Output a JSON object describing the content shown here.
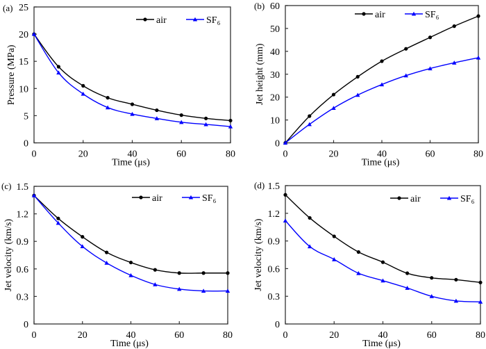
{
  "chart_data": [
    {
      "type": "line",
      "panel_label": "(a)",
      "title": "",
      "xlabel": "Time (μs)",
      "ylabel": "Pressure (MPa)",
      "xlim": [
        0,
        80
      ],
      "ylim": [
        0,
        25
      ],
      "xticks": [
        0,
        20,
        40,
        60,
        80
      ],
      "yticks": [
        0,
        5,
        10,
        15,
        20,
        25
      ],
      "grid": false,
      "legend_position": "top-right",
      "x": [
        0,
        10,
        20,
        30,
        40,
        50,
        60,
        70,
        80
      ],
      "series": [
        {
          "name": "air",
          "color": "#000000",
          "marker": "circle",
          "values": [
            20.0,
            14.0,
            10.5,
            8.3,
            7.1,
            6.0,
            5.1,
            4.5,
            4.1
          ]
        },
        {
          "name": "SF₆",
          "color": "#0000ff",
          "marker": "triangle",
          "values": [
            20.0,
            12.9,
            9.0,
            6.5,
            5.3,
            4.5,
            3.8,
            3.4,
            3.0
          ]
        }
      ]
    },
    {
      "type": "line",
      "panel_label": "(b)",
      "title": "",
      "xlabel": "Time (μs)",
      "ylabel": "Jet height (mm)",
      "xlim": [
        0,
        80
      ],
      "ylim": [
        0,
        60
      ],
      "xticks": [
        0,
        20,
        40,
        60,
        80
      ],
      "yticks": [
        0,
        10,
        20,
        30,
        40,
        50,
        60
      ],
      "grid": false,
      "legend_position": "top-center",
      "x": [
        0,
        10,
        20,
        30,
        40,
        50,
        60,
        70,
        80
      ],
      "series": [
        {
          "name": "air",
          "color": "#000000",
          "marker": "circle",
          "values": [
            0,
            11.7,
            21.1,
            28.9,
            35.7,
            41.1,
            46.1,
            51.0,
            55.4
          ]
        },
        {
          "name": "SF₆",
          "color": "#0000ff",
          "marker": "triangle",
          "values": [
            0,
            8.1,
            15.2,
            20.9,
            25.5,
            29.4,
            32.5,
            35.0,
            37.2
          ]
        }
      ]
    },
    {
      "type": "line",
      "panel_label": "(c)",
      "title": "",
      "xlabel": "Time (μs)",
      "ylabel": "Jet velocity (km/s)",
      "xlim": [
        0,
        80
      ],
      "ylim": [
        0,
        1.5
      ],
      "xticks": [
        0,
        20,
        40,
        60,
        80
      ],
      "yticks": [
        0,
        0.3,
        0.6,
        0.9,
        1.2,
        1.5
      ],
      "ytick_labels": [
        "0",
        "0.3",
        "0.6",
        "0.9",
        "1.2",
        "1.5"
      ],
      "grid": false,
      "legend_position": "top-right",
      "x": [
        0,
        10,
        20,
        30,
        40,
        50,
        60,
        70,
        80
      ],
      "series": [
        {
          "name": "air",
          "color": "#000000",
          "marker": "circle",
          "values": [
            1.4,
            1.15,
            0.95,
            0.78,
            0.67,
            0.59,
            0.555,
            0.555,
            0.555
          ]
        },
        {
          "name": "SF₆",
          "color": "#0000ff",
          "marker": "triangle",
          "values": [
            1.4,
            1.1,
            0.845,
            0.665,
            0.53,
            0.43,
            0.38,
            0.36,
            0.36
          ]
        }
      ]
    },
    {
      "type": "line",
      "panel_label": "(d)",
      "title": "",
      "xlabel": "Time (μs)",
      "ylabel": "Jet velocity (km/s)",
      "xlim": [
        0,
        80
      ],
      "ylim": [
        0,
        1.5
      ],
      "xticks": [
        0,
        20,
        40,
        60,
        80
      ],
      "yticks": [
        0,
        0.3,
        0.6,
        0.9,
        1.2,
        1.5
      ],
      "ytick_labels": [
        "0",
        "0.3",
        "0.6",
        "0.9",
        "1.2",
        "1.5"
      ],
      "grid": false,
      "legend_position": "top-right",
      "x": [
        0,
        10,
        20,
        30,
        40,
        50,
        60,
        70,
        80
      ],
      "series": [
        {
          "name": "air",
          "color": "#000000",
          "marker": "circle",
          "values": [
            1.4,
            1.15,
            0.95,
            0.78,
            0.67,
            0.55,
            0.5,
            0.48,
            0.45
          ]
        },
        {
          "name": "SF₆",
          "color": "#0000ff",
          "marker": "triangle",
          "values": [
            1.12,
            0.84,
            0.7,
            0.55,
            0.47,
            0.39,
            0.3,
            0.25,
            0.24
          ]
        }
      ]
    }
  ]
}
